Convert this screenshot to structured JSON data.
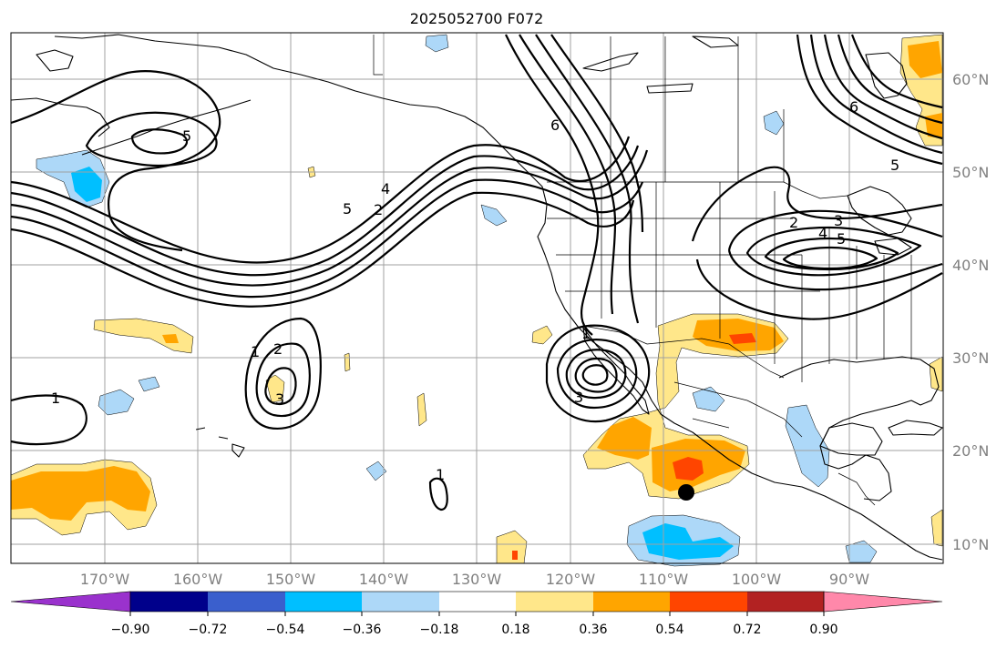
{
  "figure": {
    "title": "2025052700 F072"
  },
  "map": {
    "projection": "mercator",
    "lon_range": [
      -180,
      -80
    ],
    "lat_range": [
      7,
      65
    ],
    "lat_labels": [
      "60°N",
      "50°N",
      "40°N",
      "30°N",
      "20°N",
      "10°N"
    ],
    "lon_labels": [
      "170°W",
      "160°W",
      "150°W",
      "140°W",
      "130°W",
      "120°W",
      "110°W",
      "100°W",
      "90°W"
    ],
    "contour_labels": [
      "1",
      "2",
      "4",
      "5",
      "6",
      "2",
      "4",
      "5",
      "6",
      "2",
      "3",
      "4",
      "5",
      "2",
      "3",
      "1",
      "3",
      "1",
      "1",
      "1",
      "2",
      "3",
      "1"
    ],
    "marker": {
      "label": "point",
      "lon": -108,
      "lat": 15.5
    }
  },
  "colorbar": {
    "tick_labels": [
      "−0.90",
      "−0.72",
      "−0.54",
      "−0.36",
      "−0.18",
      "0.18",
      "0.36",
      "0.54",
      "0.72",
      "0.90"
    ],
    "colors": [
      "#9a32cd",
      "#00008b",
      "#3a5fcd",
      "#00bfff",
      "#add8f8",
      "#ffffff",
      "#ffe78a",
      "#ffa500",
      "#ff4500",
      "#b22222",
      "#ff88aa"
    ],
    "extend": "both"
  },
  "colors": {
    "light_blue": "#add8f8",
    "blue": "#00bfff",
    "yellow": "#ffe78a",
    "orange": "#ffa500",
    "red": "#ff4500"
  }
}
